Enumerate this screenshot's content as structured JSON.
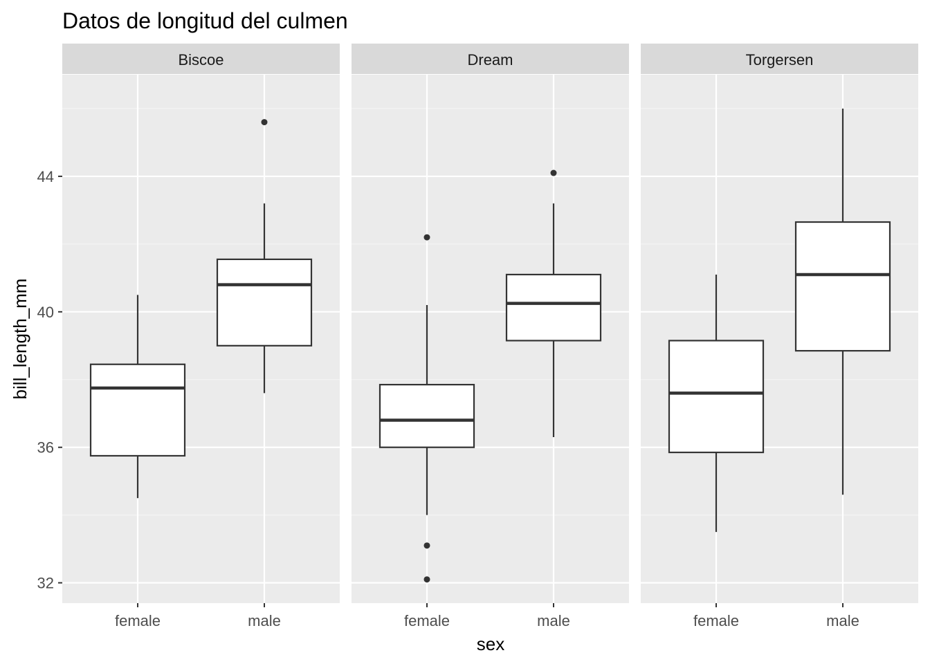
{
  "chart_data": {
    "type": "boxplot",
    "title": "Datos de longitud del culmen",
    "xlabel": "sex",
    "ylabel": "bill_length_mm",
    "ylim": [
      31.4,
      47.0
    ],
    "yticks": [
      32,
      36,
      40,
      44
    ],
    "ytick_labels": [
      "32",
      "36",
      "40",
      "44"
    ],
    "grid": true,
    "categories": [
      "female",
      "male"
    ],
    "facets": [
      {
        "name": "Biscoe",
        "boxes": [
          {
            "category": "female",
            "whisker_low": 34.5,
            "q1": 35.75,
            "median": 37.75,
            "q3": 38.45,
            "whisker_high": 40.5,
            "outliers": []
          },
          {
            "category": "male",
            "whisker_low": 37.6,
            "q1": 39.0,
            "median": 40.8,
            "q3": 41.55,
            "whisker_high": 43.2,
            "outliers": [
              45.6
            ]
          }
        ]
      },
      {
        "name": "Dream",
        "boxes": [
          {
            "category": "female",
            "whisker_low": 34.0,
            "q1": 36.0,
            "median": 36.8,
            "q3": 37.85,
            "whisker_high": 40.2,
            "outliers": [
              42.2,
              33.1,
              32.1
            ]
          },
          {
            "category": "male",
            "whisker_low": 36.3,
            "q1": 39.15,
            "median": 40.25,
            "q3": 41.1,
            "whisker_high": 43.2,
            "outliers": [
              44.1
            ]
          }
        ]
      },
      {
        "name": "Torgersen",
        "boxes": [
          {
            "category": "female",
            "whisker_low": 33.5,
            "q1": 35.85,
            "median": 37.6,
            "q3": 39.15,
            "whisker_high": 41.1,
            "outliers": []
          },
          {
            "category": "male",
            "whisker_low": 34.6,
            "q1": 38.85,
            "median": 41.1,
            "q3": 42.65,
            "whisker_high": 46.0,
            "outliers": []
          }
        ]
      }
    ],
    "colors": {
      "panel_background": "#ebebeb",
      "strip_background": "#d9d9d9",
      "grid_major": "#ffffff",
      "grid_minor": "#f5f5f5",
      "box_fill": "#ffffff",
      "box_line": "#333333"
    }
  }
}
